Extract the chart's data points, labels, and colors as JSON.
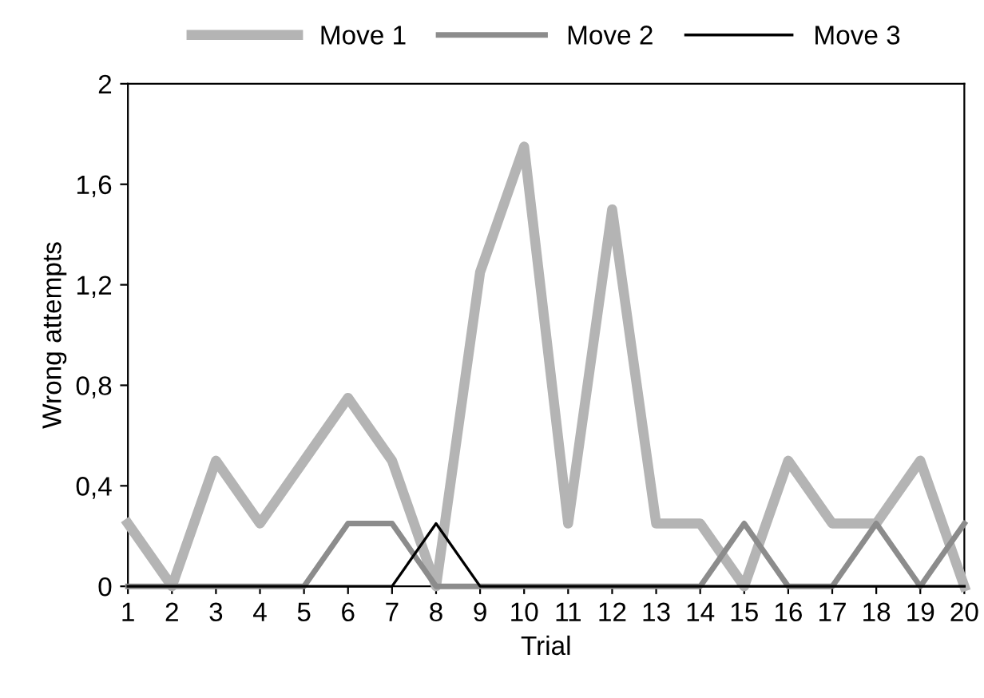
{
  "chart_data": {
    "type": "line",
    "xlabel": "Trial",
    "ylabel": "Wrong attempts",
    "categories": [
      "1",
      "2",
      "3",
      "4",
      "5",
      "6",
      "7",
      "8",
      "9",
      "10",
      "11",
      "12",
      "13",
      "14",
      "15",
      "16",
      "17",
      "18",
      "19",
      "20"
    ],
    "series": [
      {
        "name": "Move 1",
        "color": "#b4b4b4",
        "values": [
          0.25,
          0,
          0.5,
          0.25,
          0.5,
          0.75,
          0.5,
          0,
          1.25,
          1.75,
          0.25,
          1.5,
          0.25,
          0.25,
          0,
          0.5,
          0.25,
          0.25,
          0.5,
          0
        ]
      },
      {
        "name": "Move 2",
        "color": "#8c8c8c",
        "values": [
          0,
          0,
          0,
          0,
          0,
          0.25,
          0.25,
          0,
          0,
          0,
          0,
          0,
          0,
          0,
          0.25,
          0,
          0,
          0.25,
          0,
          0.25
        ]
      },
      {
        "name": "Move 3",
        "color": "#000000",
        "values": [
          0,
          0,
          0,
          0,
          0,
          0,
          0,
          0.25,
          0,
          0,
          0,
          0,
          0,
          0,
          0,
          0,
          0,
          0,
          0,
          0
        ]
      }
    ],
    "ylim": [
      0,
      2
    ],
    "yticks": [
      0,
      {
        "value": 0.4,
        "label": "0,4"
      },
      {
        "value": 0.8,
        "label": "0,8"
      },
      {
        "value": 1.2,
        "label": "1,2"
      },
      {
        "value": 1.6,
        "label": "1,6"
      },
      2
    ],
    "grid": false,
    "legend": "top",
    "marker": "none",
    "line_style": "solid"
  }
}
